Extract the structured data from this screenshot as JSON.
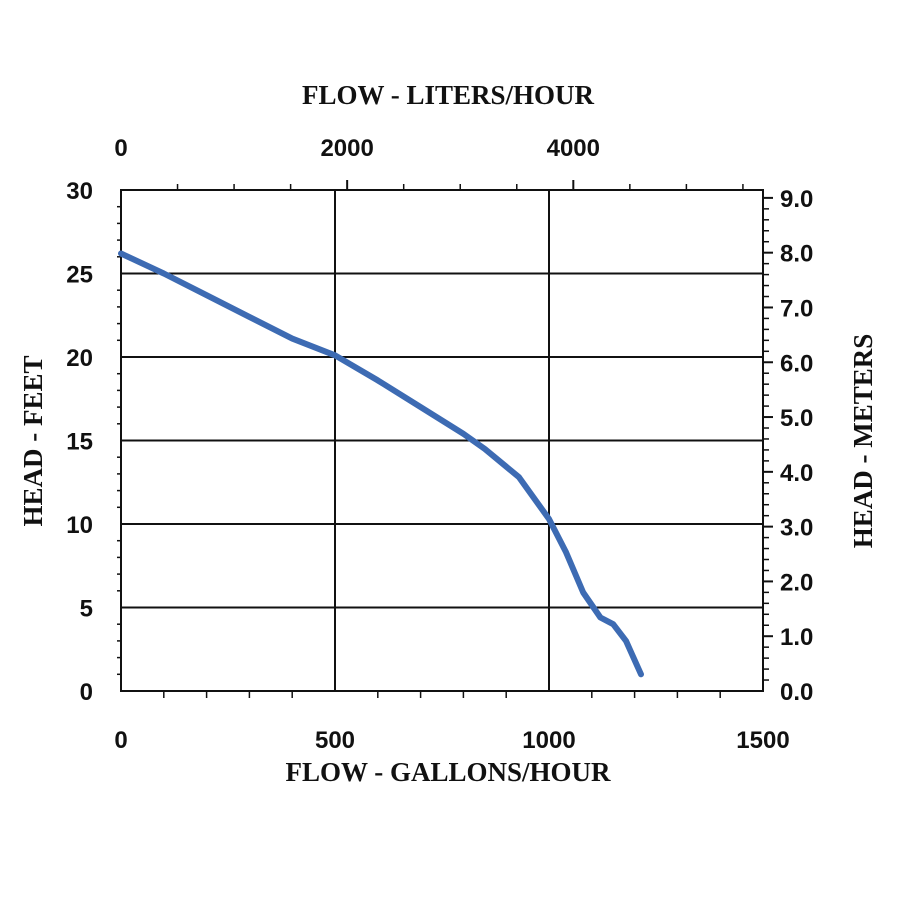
{
  "chart_data": {
    "type": "line",
    "top_xlabel": "FLOW - LITERS/HOUR",
    "xlabel": "FLOW - GALLONS/HOUR",
    "ylabel": "HEAD - FEET",
    "right_ylabel": "HEAD - METERS",
    "xlim": [
      0,
      1500
    ],
    "ylim": [
      0,
      30
    ],
    "x_ticks": [
      "0",
      "500",
      "1000",
      "1500"
    ],
    "x_tick_values": [
      0,
      500,
      1000,
      1500
    ],
    "top_x_ticks": [
      "0",
      "2000",
      "4000"
    ],
    "top_x_tick_values": [
      0,
      2000,
      4000
    ],
    "liters_per_gallon": 3.785,
    "y_ticks": [
      "0",
      "5",
      "10",
      "15",
      "20",
      "25",
      "30"
    ],
    "y_tick_values": [
      0,
      5,
      10,
      15,
      20,
      25,
      30
    ],
    "right_y_ticks": [
      "0.0",
      "1.0",
      "2.0",
      "3.0",
      "4.0",
      "5.0",
      "6.0",
      "7.0",
      "8.0",
      "9.0"
    ],
    "right_y_tick_values": [
      0,
      1,
      2,
      3,
      4,
      5,
      6,
      7,
      8,
      9
    ],
    "meters_per_foot": 0.3048,
    "grid": true,
    "line_color": "#3d6bb3",
    "series": [
      {
        "x": [
          0,
          100,
          200,
          300,
          400,
          500,
          600,
          700,
          800,
          850,
          930,
          1000,
          1040,
          1080,
          1120,
          1150,
          1180,
          1215
        ],
        "y": [
          26.2,
          25.0,
          23.7,
          22.4,
          21.1,
          20.1,
          18.6,
          17.0,
          15.4,
          14.5,
          12.8,
          10.3,
          8.3,
          5.9,
          4.4,
          4.0,
          3.0,
          1.0
        ]
      }
    ]
  }
}
